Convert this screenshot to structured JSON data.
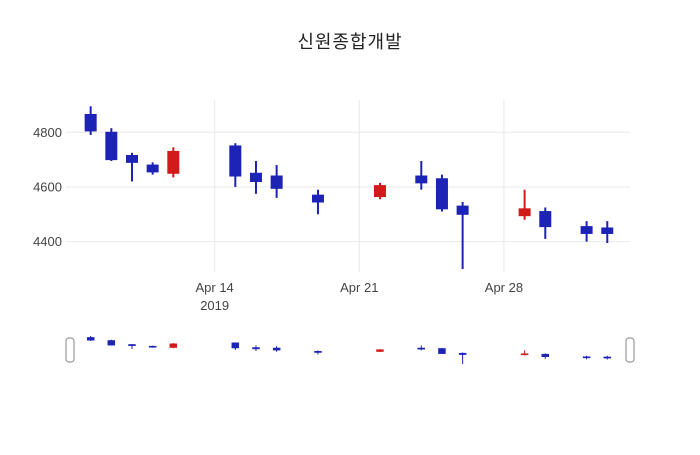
{
  "page": {
    "background": "#ffffff"
  },
  "chart": {
    "title": "신원종합개발",
    "colors": {
      "increasing": "#d31a1a",
      "decreasing": "#1c23b5",
      "grid": "#e8e8e8",
      "tick": "#444444",
      "handle_border": "#999999"
    }
  },
  "chart_data": {
    "type": "candlestick",
    "title": "신원종합개발",
    "x": [
      "2019-04-08",
      "2019-04-09",
      "2019-04-10",
      "2019-04-11",
      "2019-04-12",
      "2019-04-15",
      "2019-04-16",
      "2019-04-17",
      "2019-04-19",
      "2019-04-22",
      "2019-04-24",
      "2019-04-25",
      "2019-04-26",
      "2019-04-29",
      "2019-04-30",
      "2019-05-02",
      "2019-05-03"
    ],
    "open": [
      4865,
      4800,
      4715,
      4680,
      4650,
      4750,
      4650,
      4640,
      4570,
      4565,
      4640,
      4630,
      4530,
      4495,
      4510,
      4455,
      4450
    ],
    "high": [
      4895,
      4815,
      4725,
      4690,
      4745,
      4760,
      4695,
      4680,
      4590,
      4615,
      4695,
      4645,
      4545,
      4590,
      4525,
      4475,
      4475
    ],
    "low": [
      4790,
      4695,
      4620,
      4645,
      4635,
      4600,
      4575,
      4560,
      4500,
      4555,
      4590,
      4510,
      4300,
      4480,
      4410,
      4400,
      4395
    ],
    "close": [
      4805,
      4700,
      4690,
      4655,
      4730,
      4640,
      4620,
      4595,
      4545,
      4605,
      4615,
      4520,
      4500,
      4520,
      4455,
      4430,
      4430
    ],
    "y_ticks": [
      {
        "value": 4400,
        "label": "4400"
      },
      {
        "value": 4600,
        "label": "4600"
      },
      {
        "value": 4800,
        "label": "4800"
      }
    ],
    "x_ticks": [
      {
        "date": "2019-04-14",
        "label": "Apr 14",
        "sublabel": "2019"
      },
      {
        "date": "2019-04-21",
        "label": "Apr 21"
      },
      {
        "date": "2019-04-28",
        "label": "Apr 28"
      }
    ],
    "ylim": [
      4289,
      4918
    ],
    "grid": true,
    "legend": false,
    "rangeslider": true,
    "increasing_color": "#d31a1a",
    "decreasing_color": "#1c23b5"
  }
}
